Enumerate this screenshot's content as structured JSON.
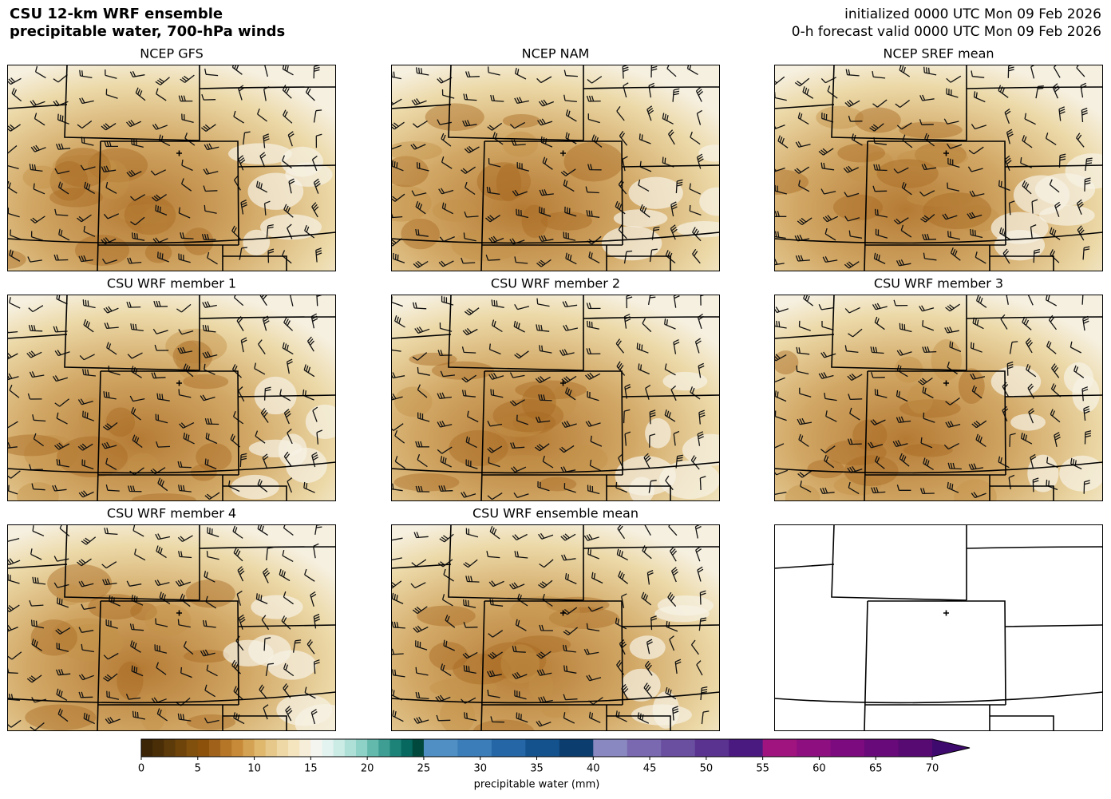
{
  "header": {
    "title_lines": [
      "CSU 12-km WRF ensemble",
      "precipitable water, 700-hPa winds"
    ],
    "init_lines": [
      "initialized 0000 UTC Mon 09 Feb 2026",
      "0-h forecast valid 0000 UTC Mon 09 Feb 2026"
    ]
  },
  "panels": [
    {
      "title": "NCEP GFS"
    },
    {
      "title": "NCEP NAM"
    },
    {
      "title": "NCEP SREF mean"
    },
    {
      "title": "CSU WRF member 1"
    },
    {
      "title": "CSU WRF member 2"
    },
    {
      "title": "CSU WRF member 3"
    },
    {
      "title": "CSU WRF member 4"
    },
    {
      "title": "CSU WRF ensemble mean"
    }
  ],
  "colorbar": {
    "label": "precipitable water (mm)",
    "lim": [
      0,
      70
    ],
    "ticks": [
      0,
      5,
      10,
      15,
      20,
      25,
      30,
      35,
      40,
      45,
      50,
      55,
      60,
      65,
      70
    ],
    "segments": [
      {
        "range": [
          0,
          25
        ],
        "colors": [
          "#3b2506",
          "#4a2e08",
          "#5c3a0a",
          "#6e440b",
          "#81500c",
          "#8c510a",
          "#a0621a",
          "#b57628",
          "#c68a38",
          "#d4a253",
          "#dfb86e",
          "#e6c98a",
          "#eed8a5",
          "#f4e5bf",
          "#f6eed8",
          "#f5f5f0",
          "#e3f3ef",
          "#cbebe5",
          "#aee0d8",
          "#8ed2c7",
          "#64b9ad",
          "#3f9e94",
          "#1d8278",
          "#06685f",
          "#00493c"
        ]
      },
      {
        "range": [
          25,
          40
        ],
        "colors": [
          "#4f8fc4",
          "#3a7db8",
          "#2567a6",
          "#14528e",
          "#0b3d6e"
        ]
      },
      {
        "range": [
          40,
          55
        ],
        "colors": [
          "#8a88c0",
          "#7a68b0",
          "#6a4ea0",
          "#5a3290",
          "#4a1a80"
        ]
      },
      {
        "range": [
          55,
          70
        ],
        "colors": [
          "#a0147f",
          "#8e0f80",
          "#7b0b7e",
          "#680a7a",
          "#560a72"
        ]
      }
    ],
    "extend_color": "#3f0a6e"
  }
}
